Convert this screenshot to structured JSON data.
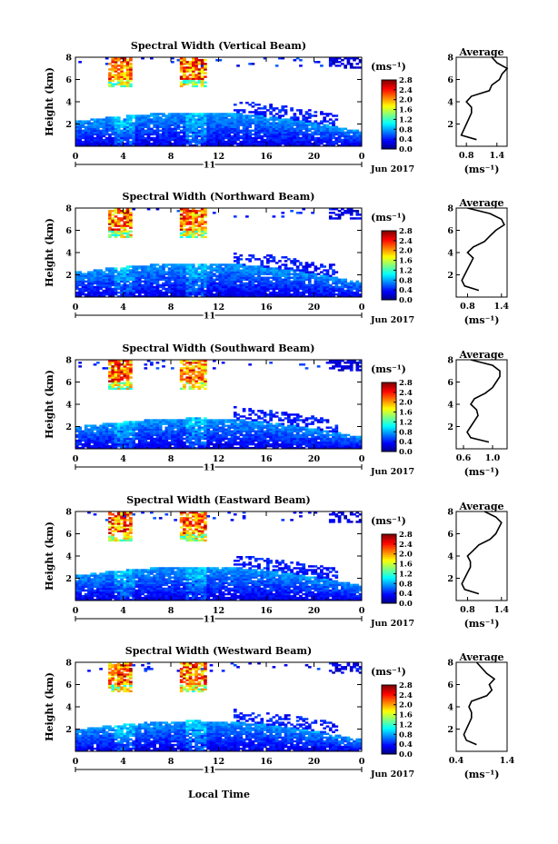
{
  "figure": {
    "xlabel_bottom": "Local Time",
    "colorbar_unit": "(ms⁻¹)",
    "avg_unit": "(ms⁻¹)",
    "date_label": "Jun 2017",
    "day_label": "11",
    "ylabel": "Height (km)",
    "avg_title": "Average"
  },
  "chart_data": [
    {
      "type": "heatmap",
      "title": "Spectral Width (Vertical Beam)",
      "xlabel": "Local Time",
      "ylabel": "Height (km)",
      "xlim": [
        0,
        24
      ],
      "ylim": [
        0,
        8
      ],
      "xticks": [
        "0",
        "4",
        "8",
        "12",
        "16",
        "20",
        "0"
      ],
      "yticks": [
        "2",
        "4",
        "6",
        "8"
      ],
      "colorbar": {
        "label": "(ms⁻¹)",
        "range": [
          0,
          2.8
        ],
        "ticks": [
          "0.0",
          "0.4",
          "0.8",
          "1.2",
          "1.6",
          "2.0",
          "2.4",
          "2.8"
        ]
      },
      "average_profile": {
        "title": "Average",
        "xlabel": "(ms⁻¹)",
        "xlim": [
          0.6,
          1.6
        ],
        "xticks": [
          "0.8",
          "1.4"
        ],
        "heights_km": [
          0.6,
          1.0,
          1.5,
          2.0,
          2.5,
          3.0,
          3.5,
          4.0,
          4.5,
          5.0,
          5.5,
          6.0,
          6.5,
          7.0,
          7.5,
          8.0
        ],
        "values": [
          1.0,
          0.7,
          0.75,
          0.8,
          0.85,
          0.9,
          0.9,
          0.8,
          0.9,
          1.25,
          1.3,
          1.45,
          1.5,
          1.6,
          1.4,
          1.3
        ]
      }
    },
    {
      "type": "heatmap",
      "title": "Spectral Width (Northward Beam)",
      "xlabel": "Local Time",
      "ylabel": "Height (km)",
      "xlim": [
        0,
        24
      ],
      "ylim": [
        0,
        8
      ],
      "xticks": [
        "0",
        "4",
        "8",
        "12",
        "16",
        "20",
        "0"
      ],
      "yticks": [
        "2",
        "4",
        "6",
        "8"
      ],
      "colorbar": {
        "label": "(ms⁻¹)",
        "range": [
          0,
          2.8
        ],
        "ticks": [
          "0.0",
          "0.4",
          "0.8",
          "1.2",
          "1.6",
          "2.0",
          "2.4",
          "2.8"
        ]
      },
      "average_profile": {
        "title": "Average",
        "xlabel": "(ms⁻¹)",
        "xlim": [
          0.6,
          1.5
        ],
        "xticks": [
          "0.8",
          "1.4"
        ],
        "heights_km": [
          0.6,
          1.0,
          1.5,
          2.0,
          2.5,
          3.0,
          3.5,
          4.0,
          4.5,
          5.0,
          5.5,
          6.0,
          6.5,
          7.0,
          7.5,
          8.0
        ],
        "values": [
          1.0,
          0.75,
          0.7,
          0.75,
          0.8,
          0.85,
          0.9,
          0.8,
          0.9,
          1.1,
          1.2,
          1.3,
          1.45,
          1.4,
          1.2,
          0.8
        ]
      }
    },
    {
      "type": "heatmap",
      "title": "Spectral Width (Southward Beam)",
      "xlabel": "Local Time",
      "ylabel": "Height (km)",
      "xlim": [
        0,
        24
      ],
      "ylim": [
        0,
        8
      ],
      "xticks": [
        "0",
        "4",
        "8",
        "12",
        "16",
        "20",
        "0"
      ],
      "yticks": [
        "2",
        "4",
        "6",
        "8"
      ],
      "colorbar": {
        "label": "(ms⁻¹)",
        "range": [
          0,
          2.8
        ],
        "ticks": [
          "0.0",
          "0.4",
          "0.8",
          "1.2",
          "1.6",
          "2.0",
          "2.4",
          "2.8"
        ]
      },
      "average_profile": {
        "title": "Average",
        "xlabel": "(ms⁻¹)",
        "xlim": [
          0.5,
          1.2
        ],
        "xticks": [
          "0.6",
          "1.0"
        ],
        "heights_km": [
          0.6,
          1.0,
          1.5,
          2.0,
          2.5,
          3.0,
          3.5,
          4.0,
          4.5,
          5.0,
          5.5,
          6.0,
          6.5,
          7.0,
          7.5,
          8.0
        ],
        "values": [
          0.95,
          0.7,
          0.65,
          0.7,
          0.75,
          0.8,
          0.78,
          0.7,
          0.75,
          0.9,
          1.0,
          1.05,
          1.1,
          1.1,
          1.0,
          0.7
        ]
      }
    },
    {
      "type": "heatmap",
      "title": "Spectral Width (Eastward Beam)",
      "xlabel": "Local Time",
      "ylabel": "Height (km)",
      "xlim": [
        0,
        24
      ],
      "ylim": [
        0,
        8
      ],
      "xticks": [
        "0",
        "4",
        "8",
        "12",
        "16",
        "20",
        "0"
      ],
      "yticks": [
        "2",
        "4",
        "6",
        "8"
      ],
      "colorbar": {
        "label": "(ms⁻¹)",
        "range": [
          0,
          2.8
        ],
        "ticks": [
          "0.0",
          "0.4",
          "0.8",
          "1.2",
          "1.6",
          "2.0",
          "2.4",
          "2.8"
        ]
      },
      "average_profile": {
        "title": "Average",
        "xlabel": "(ms⁻¹)",
        "xlim": [
          0.6,
          1.5
        ],
        "xticks": [
          "0.8",
          "1.4"
        ],
        "heights_km": [
          0.6,
          1.0,
          1.5,
          2.0,
          2.5,
          3.0,
          3.5,
          4.0,
          4.5,
          5.0,
          5.5,
          6.0,
          6.5,
          7.0,
          7.5,
          8.0
        ],
        "values": [
          1.0,
          0.75,
          0.7,
          0.75,
          0.8,
          0.85,
          0.85,
          0.8,
          0.9,
          1.0,
          1.2,
          1.3,
          1.35,
          1.4,
          1.3,
          1.1
        ]
      }
    },
    {
      "type": "heatmap",
      "title": "Spectral Width (Westward Beam)",
      "xlabel": "Local Time",
      "ylabel": "Height (km)",
      "xlim": [
        0,
        24
      ],
      "ylim": [
        0,
        8
      ],
      "xticks": [
        "0",
        "4",
        "8",
        "12",
        "16",
        "20",
        "0"
      ],
      "yticks": [
        "2",
        "4",
        "6",
        "8"
      ],
      "colorbar": {
        "label": "(ms⁻¹)",
        "range": [
          0,
          2.8
        ],
        "ticks": [
          "0.0",
          "0.4",
          "0.8",
          "1.2",
          "1.6",
          "2.0",
          "2.4",
          "2.8"
        ]
      },
      "average_profile": {
        "title": "Average",
        "xlabel": "(ms⁻¹)",
        "xlim": [
          0.4,
          1.4
        ],
        "xticks": [
          "0.4",
          "1.4"
        ],
        "heights_km": [
          0.6,
          1.0,
          1.5,
          2.0,
          2.5,
          3.0,
          3.5,
          4.0,
          4.5,
          5.0,
          5.5,
          6.0,
          6.5,
          7.0,
          7.5,
          8.0
        ],
        "values": [
          0.8,
          0.6,
          0.55,
          0.6,
          0.65,
          0.7,
          0.7,
          0.65,
          0.7,
          1.0,
          1.1,
          1.05,
          1.15,
          1.0,
          0.9,
          0.8
        ]
      }
    }
  ]
}
